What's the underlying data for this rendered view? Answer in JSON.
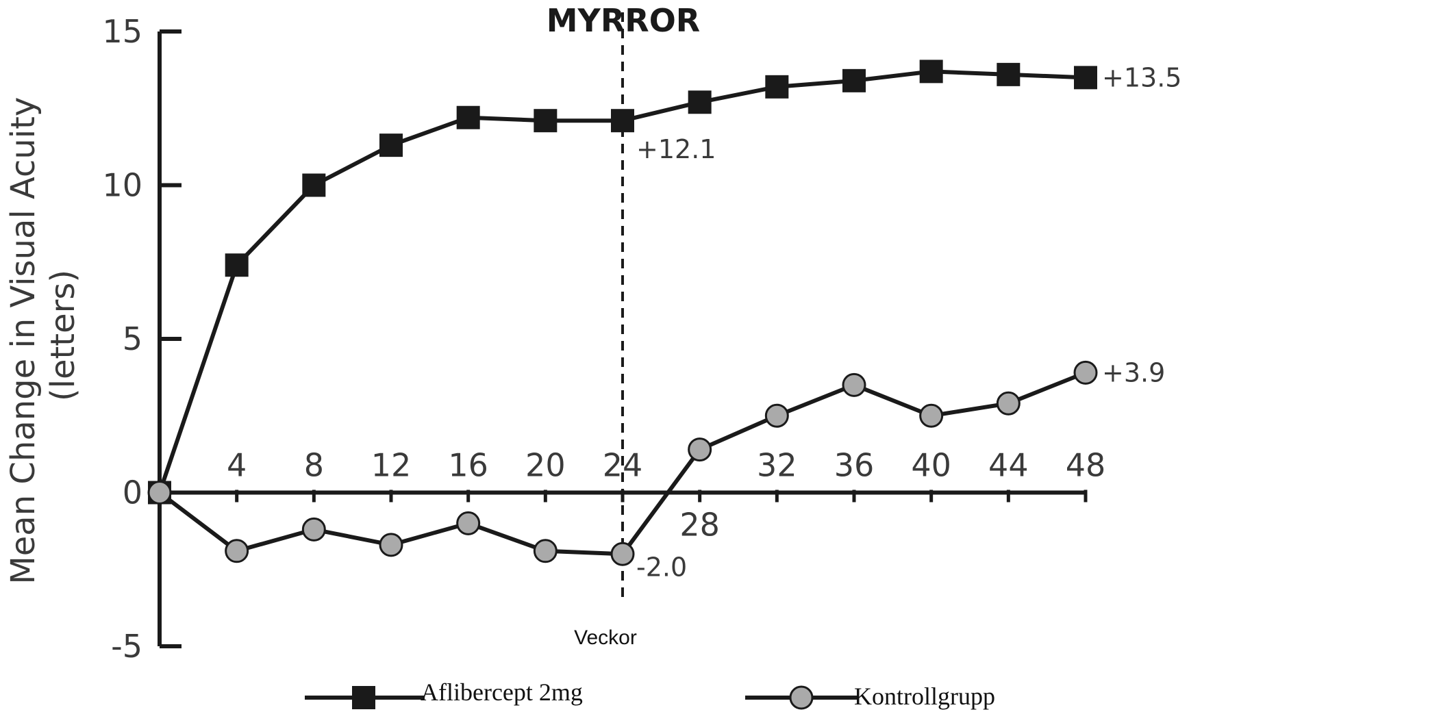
{
  "chart_data": {
    "type": "line",
    "title": "MYRROR",
    "xlabel": "Veckor",
    "ylabel": [
      "Mean Change in Visual Acuity",
      "(letters)"
    ],
    "ylim": [
      -5,
      15
    ],
    "yticks": [
      "15",
      "10",
      "5",
      "0",
      "-5"
    ],
    "xlim": [
      0,
      48
    ],
    "xtick_labels": [
      "4",
      "8",
      "12",
      "16",
      "20",
      "24",
      "28",
      "32",
      "36",
      "40",
      "44",
      "48"
    ],
    "x": [
      0,
      4,
      8,
      12,
      16,
      20,
      24,
      28,
      32,
      36,
      40,
      44,
      48
    ],
    "reference_line": {
      "x": 24,
      "style": "dashed"
    },
    "grid": false,
    "legend_position": "bottom",
    "series": [
      {
        "name": "Aflibercept 2mg",
        "marker": "square",
        "color": "#1a1a1a",
        "values": [
          0,
          7.4,
          10.0,
          11.3,
          12.2,
          12.1,
          12.1,
          12.7,
          13.2,
          13.4,
          13.7,
          13.6,
          13.5
        ]
      },
      {
        "name": "Kontrollgrupp",
        "marker": "circle",
        "color": "#aaaaaa",
        "values": [
          0,
          -1.9,
          -1.2,
          -1.7,
          -1.0,
          -1.9,
          -2.0,
          1.4,
          2.5,
          3.5,
          2.5,
          2.9,
          3.9
        ]
      }
    ],
    "annotations": [
      {
        "text": "+12.1",
        "series": 0,
        "x": 24
      },
      {
        "text": "+13.5",
        "series": 0,
        "x": 48
      },
      {
        "text": "-2.0",
        "series": 1,
        "x": 24
      },
      {
        "text": "+3.9",
        "series": 1,
        "x": 48
      }
    ]
  }
}
